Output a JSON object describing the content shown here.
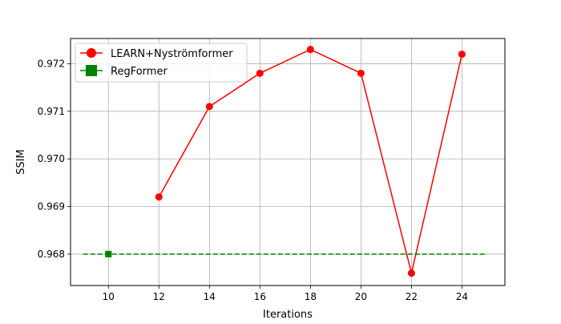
{
  "chart_data": {
    "type": "line",
    "title": "",
    "xlabel": "Iterations",
    "ylabel": "SSIM",
    "xlim": [
      8.5,
      25.7
    ],
    "ylim": [
      0.96734,
      0.97253
    ],
    "x_ticks": [
      10,
      12,
      14,
      16,
      18,
      20,
      22,
      24
    ],
    "y_ticks": [
      0.968,
      0.969,
      0.97,
      0.971,
      0.972
    ],
    "grid": true,
    "legend_position": "top-left",
    "series": [
      {
        "name": "LEARN+Nyströmformer",
        "color": "#ff0000",
        "marker": "circle",
        "line_style": "solid",
        "x": [
          12,
          14,
          16,
          18,
          20,
          22,
          24
        ],
        "y": [
          0.9692,
          0.9711,
          0.9718,
          0.9723,
          0.9718,
          0.9676,
          0.9722
        ]
      },
      {
        "name": "RegFormer",
        "color": "#008000",
        "marker": "square",
        "line_style": "dashed",
        "x": [
          10
        ],
        "y": [
          0.968
        ],
        "reference_line": {
          "y": 0.968,
          "x_from": 9,
          "x_to": 25
        }
      }
    ]
  }
}
